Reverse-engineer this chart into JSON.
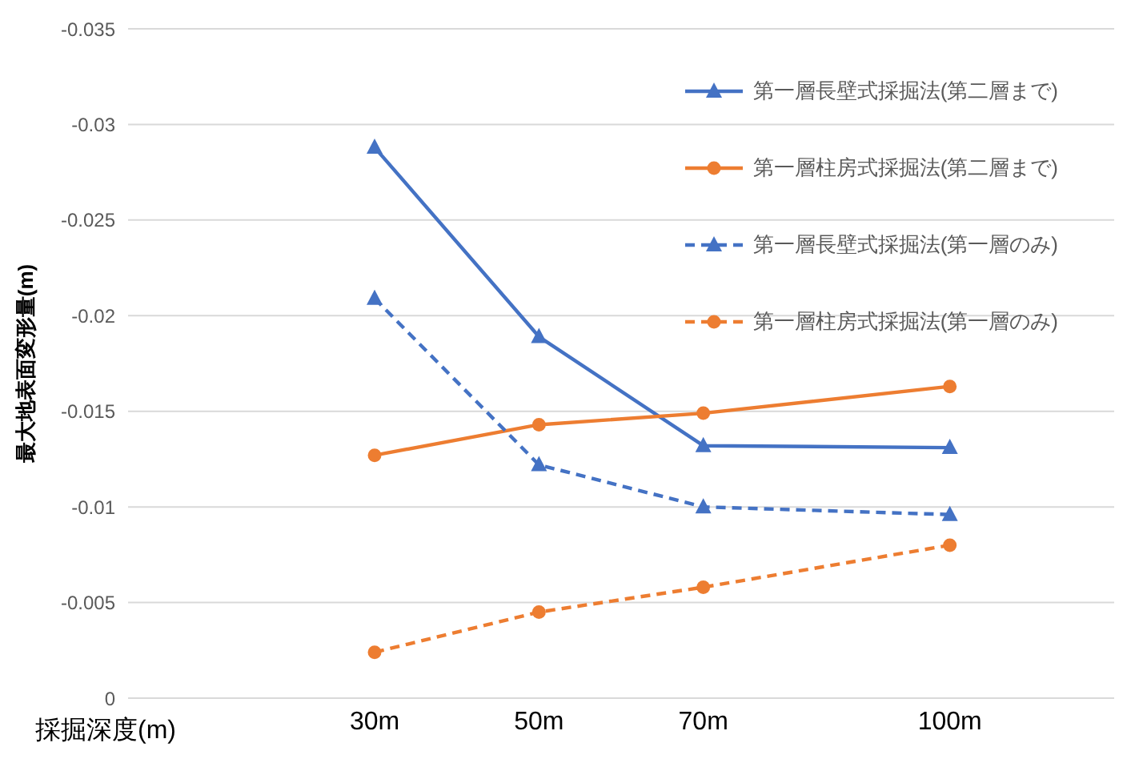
{
  "chart_data": {
    "type": "line",
    "xlabel": "採掘深度(m)",
    "ylabel": "最大地表面変形量(m)",
    "x": [
      30,
      50,
      70,
      100
    ],
    "xlim": [
      0,
      120
    ],
    "xticks": [
      {
        "value": 30,
        "label": "30m"
      },
      {
        "value": 50,
        "label": "50m"
      },
      {
        "value": 70,
        "label": "70m"
      },
      {
        "value": 100,
        "label": "100m"
      }
    ],
    "ylim": [
      0,
      -0.035
    ],
    "yticks": [
      0,
      -0.005,
      -0.01,
      -0.015,
      -0.02,
      -0.025,
      -0.03,
      -0.035
    ],
    "grid": "y",
    "legend": "top right",
    "series": [
      {
        "name": "第一層長壁式採掘法(第二層まで)",
        "color": "#4472c4",
        "marker": "triangle",
        "line_style": "solid",
        "values": [
          -0.0288,
          -0.0189,
          -0.0132,
          -0.0131
        ]
      },
      {
        "name": "第一層柱房式採掘法(第二層まで)",
        "color": "#ed7d31",
        "marker": "circle",
        "line_style": "solid",
        "values": [
          -0.0127,
          -0.0143,
          -0.0149,
          -0.0163
        ]
      },
      {
        "name": "第一層長壁式採掘法(第一層のみ)",
        "color": "#4472c4",
        "marker": "triangle",
        "line_style": "dashed",
        "values": [
          -0.0209,
          -0.0122,
          -0.01,
          -0.0096
        ]
      },
      {
        "name": "第一層柱房式採掘法(第一層のみ)",
        "color": "#ed7d31",
        "marker": "circle",
        "line_style": "dashed",
        "values": [
          -0.0024,
          -0.0045,
          -0.0058,
          -0.008
        ]
      }
    ]
  }
}
